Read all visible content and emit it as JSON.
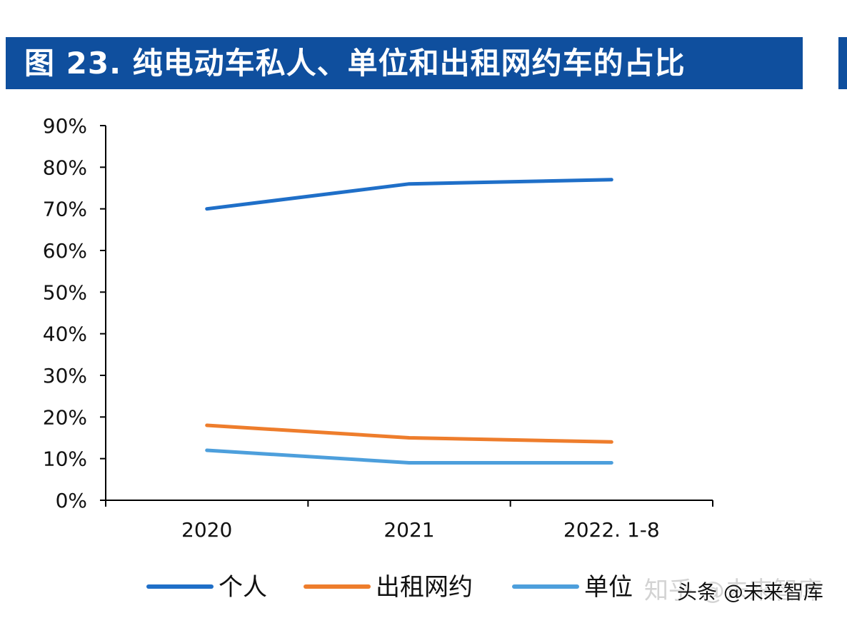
{
  "title": "图 23. 纯电动车私人、单位和出租网约车的占比",
  "watermark_back": "知乎 @未来智库",
  "watermark_front": "头条 @未来智库",
  "colors": {
    "title_bg": "#0f4f9e",
    "title_text": "#ffffff",
    "axis": "#000000"
  },
  "chart_data": {
    "type": "line",
    "categories": [
      "2020",
      "2021",
      "2022. 1-8"
    ],
    "ylim": [
      0,
      90
    ],
    "yticks": [
      0,
      10,
      20,
      30,
      40,
      50,
      60,
      70,
      80,
      90
    ],
    "ytick_labels": [
      "0%",
      "10%",
      "20%",
      "30%",
      "40%",
      "50%",
      "60%",
      "70%",
      "80%",
      "90%"
    ],
    "grid": false,
    "legend_position": "bottom",
    "series": [
      {
        "name": "个人",
        "values": [
          70,
          76,
          77
        ],
        "color": "#1f6fc8"
      },
      {
        "name": "出租网约",
        "values": [
          18,
          15,
          14
        ],
        "color": "#ee7d2c"
      },
      {
        "name": "单位",
        "values": [
          12,
          9,
          9
        ],
        "color": "#4d9fdc"
      }
    ]
  }
}
